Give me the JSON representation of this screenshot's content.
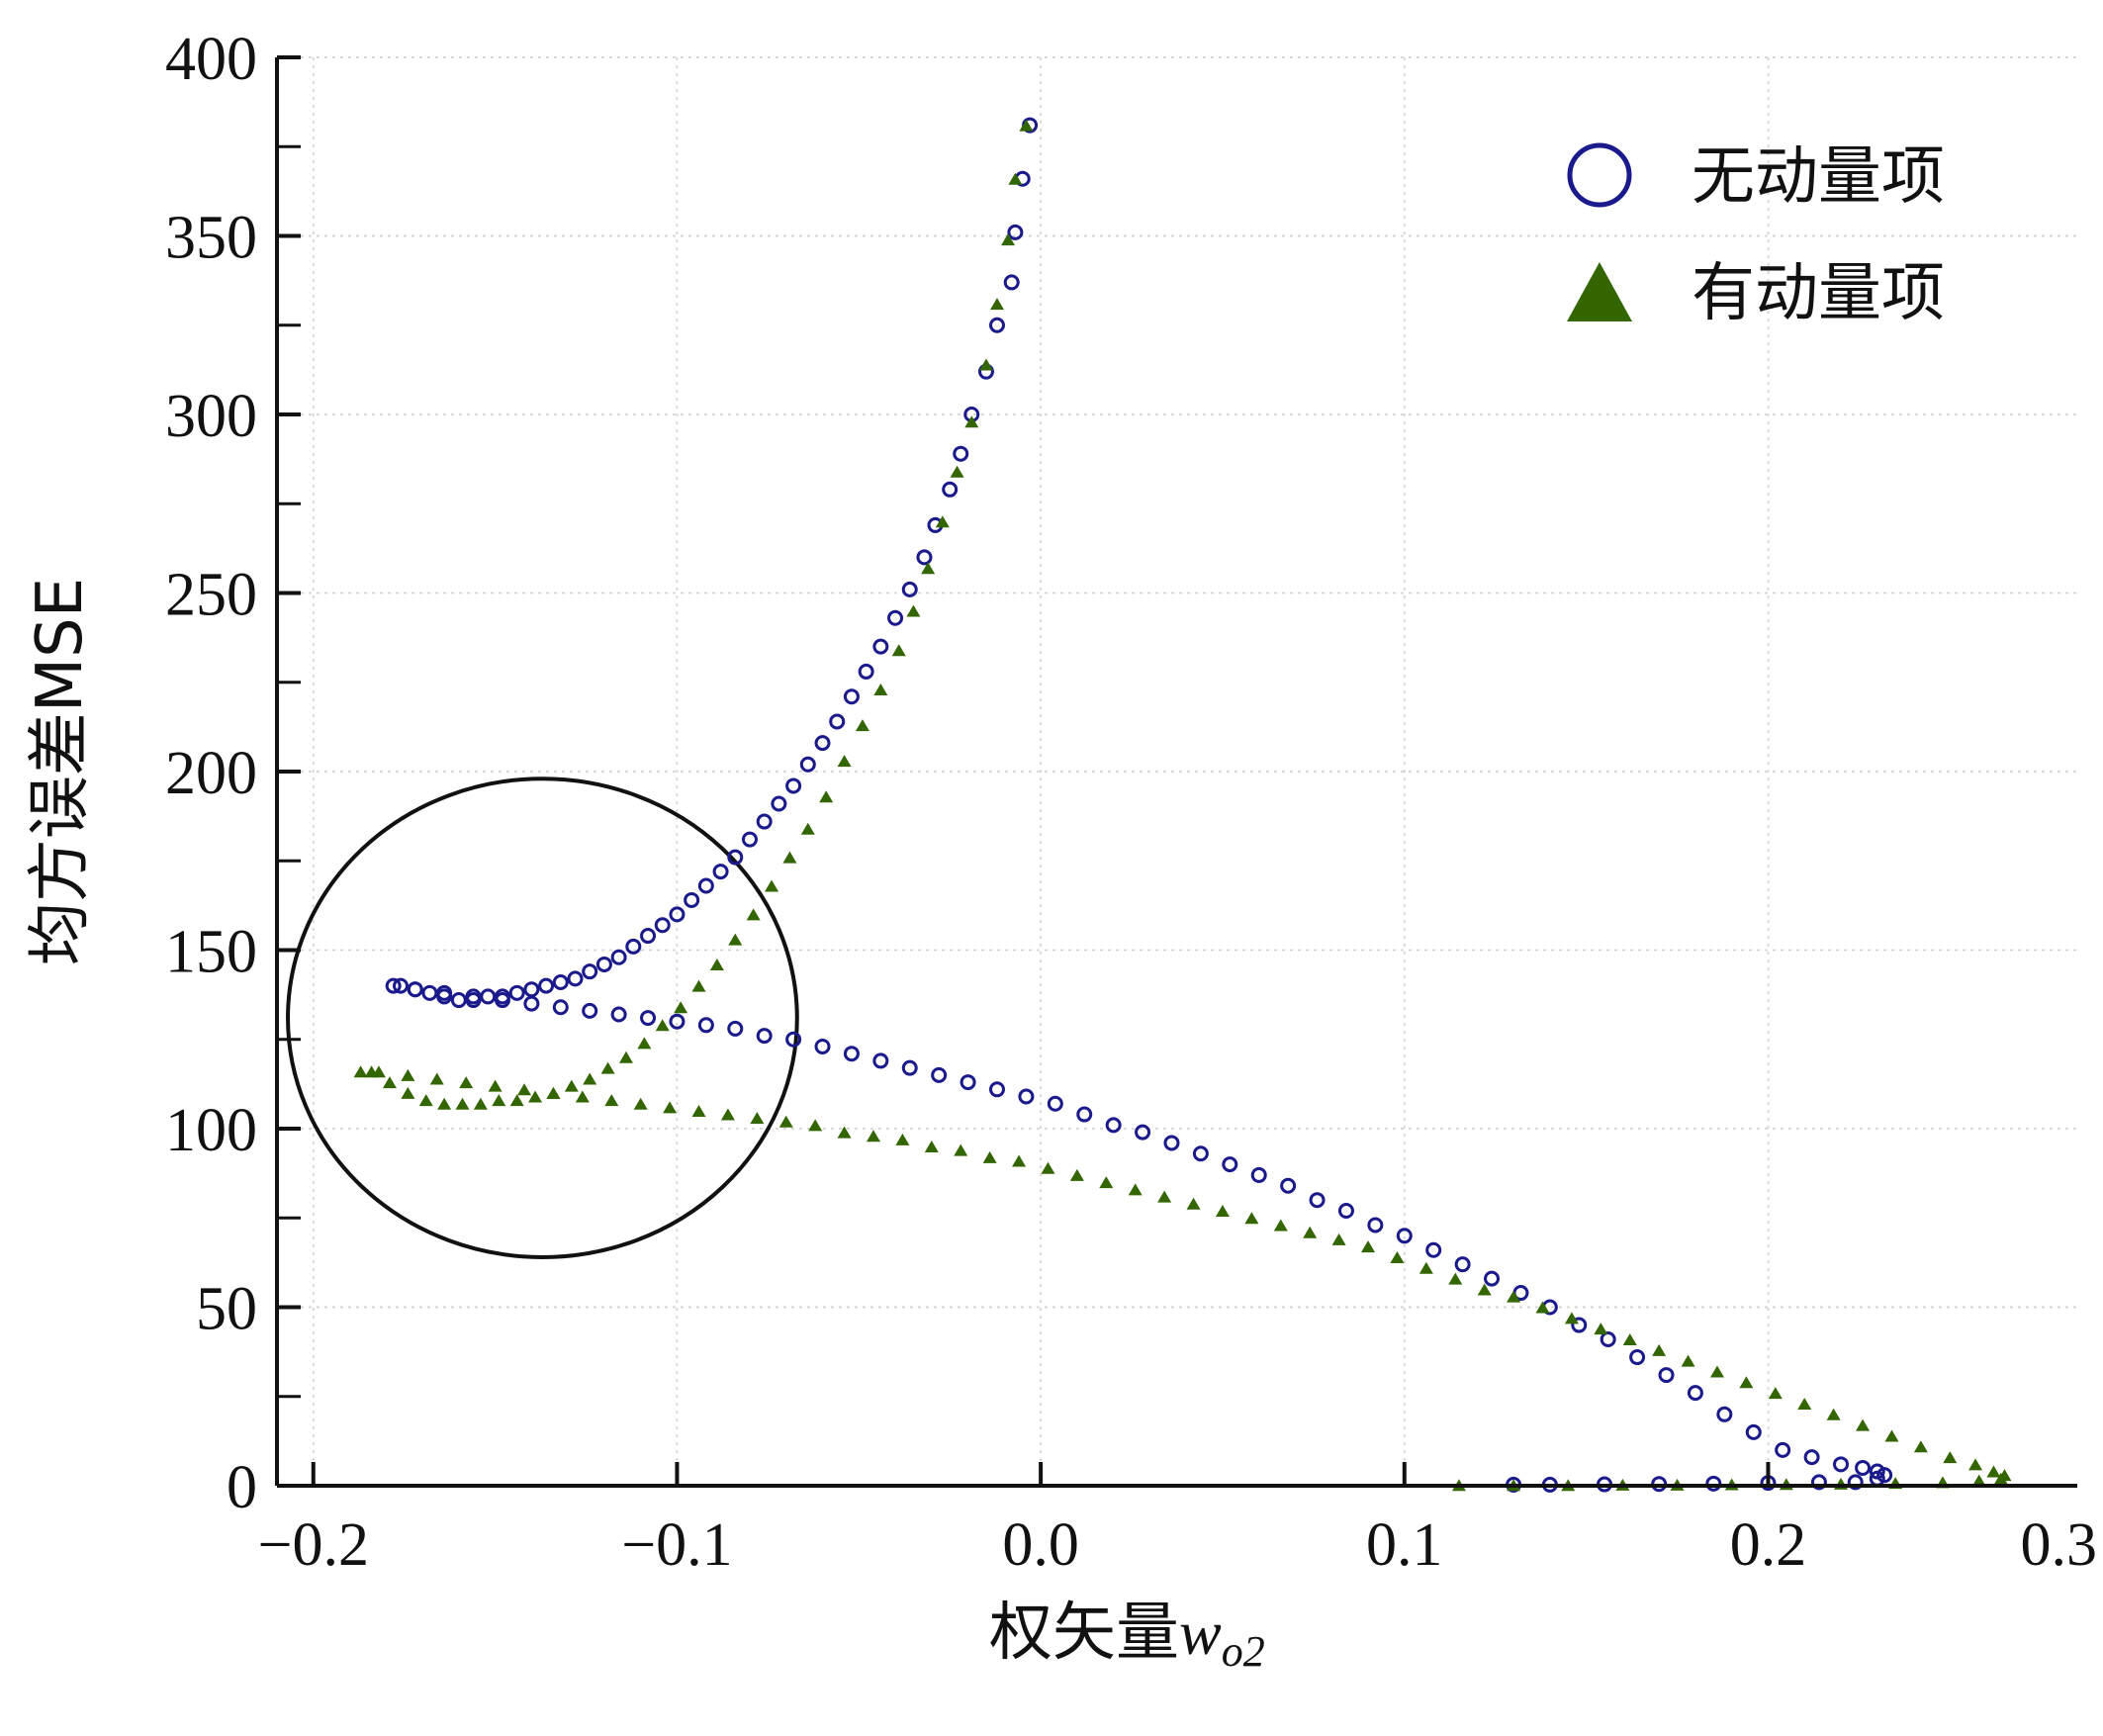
{
  "chart_data": {
    "type": "scatter",
    "title": "",
    "xlabel": "权矢量",
    "xlabel_var": "w",
    "xlabel_sub": "o2",
    "ylabel": "均方误差MSE",
    "xlim": [
      -0.21,
      0.285
    ],
    "ylim": [
      0,
      400
    ],
    "xticks": [
      -0.2,
      -0.1,
      0.0,
      0.1,
      0.2,
      0.3
    ],
    "xtick_labels": [
      "−0.2",
      "−0.1",
      "0.0",
      "0.1",
      "0.2",
      "0.3"
    ],
    "yticks": [
      0,
      50,
      100,
      150,
      200,
      250,
      300,
      350,
      400
    ],
    "ytick_labels": [
      "0",
      "50",
      "100",
      "150",
      "200",
      "250",
      "300",
      "350",
      "400"
    ],
    "grid": true,
    "legend_position": "top-right",
    "annotation": {
      "type": "circle",
      "center": [
        -0.137,
        131
      ],
      "radius_x": 0.07,
      "radius_y": 67
    },
    "series": [
      {
        "name": "无动量项",
        "marker": "circle-open",
        "color": "#1a1a8c",
        "x": [
          -0.003,
          -0.005,
          -0.007,
          -0.008,
          -0.012,
          -0.015,
          -0.019,
          -0.022,
          -0.025,
          -0.029,
          -0.032,
          -0.036,
          -0.04,
          -0.044,
          -0.048,
          -0.052,
          -0.056,
          -0.06,
          -0.064,
          -0.068,
          -0.072,
          -0.076,
          -0.08,
          -0.084,
          -0.088,
          -0.092,
          -0.096,
          -0.1,
          -0.104,
          -0.108,
          -0.112,
          -0.116,
          -0.12,
          -0.124,
          -0.128,
          -0.132,
          -0.136,
          -0.14,
          -0.144,
          -0.148,
          -0.152,
          -0.156,
          -0.16,
          -0.164,
          -0.168,
          -0.172,
          -0.176,
          -0.178,
          -0.172,
          -0.164,
          -0.156,
          -0.148,
          -0.14,
          -0.132,
          -0.124,
          -0.116,
          -0.108,
          -0.1,
          -0.092,
          -0.084,
          -0.076,
          -0.068,
          -0.06,
          -0.052,
          -0.044,
          -0.036,
          -0.028,
          -0.02,
          -0.012,
          -0.004,
          0.004,
          0.012,
          0.02,
          0.028,
          0.036,
          0.044,
          0.052,
          0.06,
          0.068,
          0.076,
          0.084,
          0.092,
          0.1,
          0.108,
          0.116,
          0.124,
          0.132,
          0.14,
          0.148,
          0.156,
          0.164,
          0.172,
          0.18,
          0.188,
          0.196,
          0.204,
          0.212,
          0.22,
          0.226,
          0.23,
          0.232,
          0.23,
          0.224,
          0.214,
          0.2,
          0.185,
          0.17,
          0.155,
          0.14,
          0.13
        ],
        "y": [
          381,
          366,
          351,
          337,
          325,
          312,
          300,
          289,
          279,
          269,
          260,
          251,
          243,
          235,
          228,
          221,
          214,
          208,
          202,
          196,
          191,
          186,
          181,
          176,
          172,
          168,
          164,
          160,
          157,
          154,
          151,
          148,
          146,
          144,
          142,
          141,
          140,
          139,
          138,
          137,
          137,
          136,
          136,
          137,
          138,
          139,
          140,
          140,
          139,
          138,
          137,
          136,
          135,
          134,
          133,
          132,
          131,
          130,
          129,
          128,
          126,
          125,
          123,
          121,
          119,
          117,
          115,
          113,
          111,
          109,
          107,
          104,
          101,
          99,
          96,
          93,
          90,
          87,
          84,
          80,
          77,
          73,
          70,
          66,
          62,
          58,
          54,
          50,
          45,
          41,
          36,
          31,
          26,
          20,
          15,
          10,
          8,
          6,
          5,
          4,
          3,
          2,
          1,
          1,
          0.8,
          0.6,
          0.5,
          0.4,
          0.3,
          0.3
        ],
        "y_note": ""
      },
      {
        "name": "有动量项",
        "marker": "triangle-filled",
        "color": "#336600",
        "x": [
          -0.004,
          -0.007,
          -0.009,
          -0.012,
          -0.015,
          -0.019,
          -0.023,
          -0.027,
          -0.031,
          -0.035,
          -0.039,
          -0.044,
          -0.049,
          -0.054,
          -0.059,
          -0.064,
          -0.069,
          -0.074,
          -0.079,
          -0.084,
          -0.089,
          -0.094,
          -0.099,
          -0.104,
          -0.109,
          -0.114,
          -0.119,
          -0.124,
          -0.129,
          -0.134,
          -0.139,
          -0.144,
          -0.149,
          -0.154,
          -0.159,
          -0.164,
          -0.169,
          -0.174,
          -0.179,
          -0.184,
          -0.187,
          -0.182,
          -0.174,
          -0.166,
          -0.158,
          -0.15,
          -0.142,
          -0.134,
          -0.126,
          -0.118,
          -0.11,
          -0.102,
          -0.094,
          -0.086,
          -0.078,
          -0.07,
          -0.062,
          -0.054,
          -0.046,
          -0.038,
          -0.03,
          -0.022,
          -0.014,
          -0.006,
          0.002,
          0.01,
          0.018,
          0.026,
          0.034,
          0.042,
          0.05,
          0.058,
          0.066,
          0.074,
          0.082,
          0.09,
          0.098,
          0.106,
          0.114,
          0.122,
          0.13,
          0.138,
          0.146,
          0.154,
          0.162,
          0.17,
          0.178,
          0.186,
          0.194,
          0.202,
          0.21,
          0.218,
          0.226,
          0.234,
          0.242,
          0.25,
          0.257,
          0.262,
          0.265,
          0.264,
          0.258,
          0.248,
          0.235,
          0.22,
          0.205,
          0.19,
          0.175,
          0.16,
          0.145,
          0.13,
          0.115
        ],
        "y": [
          381,
          366,
          349,
          331,
          314,
          298,
          284,
          270,
          257,
          245,
          234,
          223,
          213,
          203,
          193,
          184,
          176,
          168,
          160,
          153,
          146,
          140,
          134,
          129,
          124,
          120,
          117,
          114,
          112,
          110,
          109,
          108,
          108,
          107,
          107,
          107,
          108,
          110,
          113,
          116,
          116,
          116,
          115,
          114,
          113,
          112,
          111,
          110,
          109,
          108,
          107,
          106,
          105,
          104,
          103,
          102,
          101,
          99,
          98,
          97,
          95,
          94,
          92,
          91,
          89,
          87,
          85,
          83,
          81,
          79,
          77,
          75,
          73,
          71,
          69,
          67,
          64,
          61,
          58,
          55,
          53,
          50,
          47,
          44,
          41,
          38,
          35,
          32,
          29,
          26,
          23,
          20,
          17,
          14,
          11,
          8,
          6,
          4,
          3,
          2,
          1.5,
          1,
          0.8,
          0.6,
          0.5,
          0.4,
          0.3,
          0.3,
          0.2,
          0.2,
          0.2
        ],
        "y_note": ""
      }
    ]
  }
}
